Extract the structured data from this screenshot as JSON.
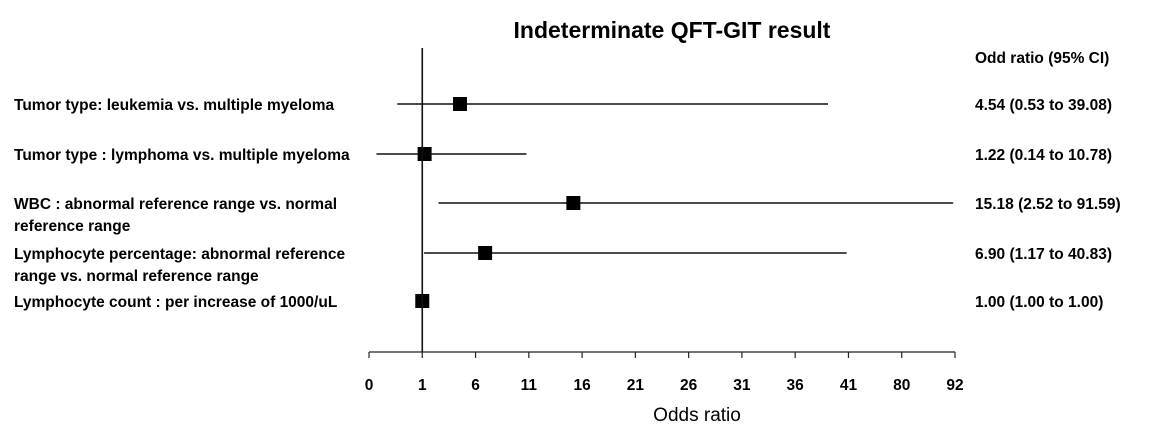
{
  "chart_data": {
    "type": "forest",
    "title": "Indeterminate QFT-GIT result",
    "xlabel": "Odds ratio",
    "ci_column_header": "Odd ratio (95% CI)",
    "x_tick_labels": [
      "0",
      "1",
      "6",
      "11",
      "16",
      "21",
      "26",
      "31",
      "36",
      "41",
      "80",
      "92"
    ],
    "reference_line": 1,
    "rows": [
      {
        "label_lines": [
          "Tumor type: leukemia vs. multiple myeloma"
        ],
        "or": 4.54,
        "lower": 0.53,
        "upper": 39.08,
        "ci_text": "4.54 (0.53 to 39.08)"
      },
      {
        "label_lines": [
          "Tumor type : lymphoma vs. multiple myeloma"
        ],
        "or": 1.22,
        "lower": 0.14,
        "upper": 10.78,
        "ci_text": "1.22 (0.14 to 10.78)"
      },
      {
        "label_lines": [
          "WBC : abnormal reference range vs. normal",
          "reference range"
        ],
        "or": 15.18,
        "lower": 2.52,
        "upper": 91.59,
        "ci_text": "15.18 (2.52 to 91.59)"
      },
      {
        "label_lines": [
          "Lymphocyte percentage: abnormal reference",
          "range vs. normal reference range"
        ],
        "or": 6.9,
        "lower": 1.17,
        "upper": 40.83,
        "ci_text": "6.90 (1.17 to 40.83)"
      },
      {
        "label_lines": [
          "Lymphocyte count : per increase of 1000/uL"
        ],
        "or": 1.0,
        "lower": 1.0,
        "upper": 1.0,
        "ci_text": "1.00 (1.00 to 1.00)"
      }
    ]
  }
}
